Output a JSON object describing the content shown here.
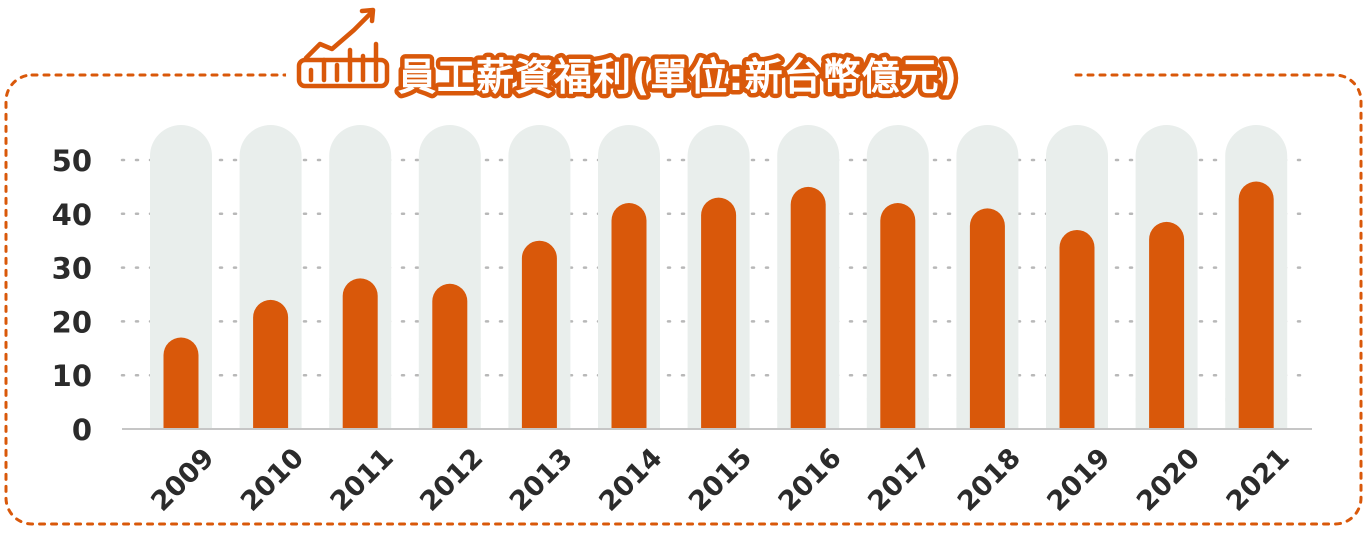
{
  "colors": {
    "accent": "#d9580a",
    "track": "#e9eeec",
    "grid": "#b8b8b8",
    "axis": "#c6c6c6",
    "text": "#2b2b2b",
    "title_fill": "#ffffff"
  },
  "header": {
    "icon": "bar-chart-trend-up-icon"
  },
  "chart_data": {
    "type": "bar",
    "title": "員工薪資福利(單位:新台幣億元)",
    "xlabel": "",
    "ylabel": "",
    "categories": [
      "2009",
      "2010",
      "2011",
      "2012",
      "2013",
      "2014",
      "2015",
      "2016",
      "2017",
      "2018",
      "2019",
      "2020",
      "2021"
    ],
    "values": [
      17,
      24,
      28,
      27,
      35,
      42,
      43,
      45,
      42,
      41,
      37,
      38.5,
      46
    ],
    "ylim": [
      0,
      50
    ],
    "yticks": [
      "0",
      "10",
      "20",
      "30",
      "40",
      "50"
    ],
    "grid": true,
    "legend": "none"
  }
}
